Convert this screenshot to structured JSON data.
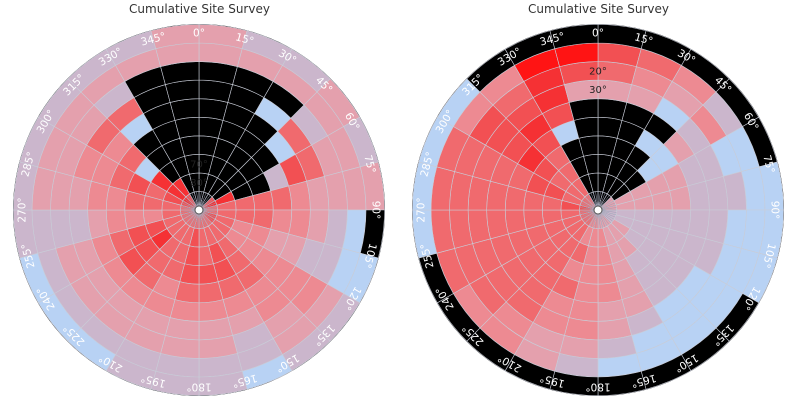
{
  "chart_data": [
    {
      "type": "polar-heatmap",
      "title": "Cumulative Site Survey",
      "azimuth_step_deg": 15,
      "elevation_rings_deg": [
        90,
        80,
        70,
        60,
        50,
        40,
        30,
        20,
        10,
        0
      ],
      "azimuth_labels": [
        "0°",
        "15°",
        "30°",
        "45°",
        "60°",
        "75°",
        "90°",
        "105°",
        "120°",
        "135°",
        "150°",
        "165°",
        "180°",
        "195°",
        "210°",
        "225°",
        "240°",
        "255°",
        "270°",
        "285°",
        "300°",
        "315°",
        "330°",
        "345°"
      ],
      "elevation_labels": [
        {
          "elevation": 70,
          "text": "70°"
        },
        {
          "elevation": 80,
          "text": "80°"
        }
      ],
      "colors": {
        "0": "#000000",
        "1": "#b8d2f4",
        "2": "#cbb6cc",
        "3": "#e4a0ad",
        "4": "#ed8a92",
        "5": "#f06a6e",
        "6": "#f25053",
        "7": "#f53134",
        "8": "#ff1414"
      },
      "grid": {
        "0": "0000000033",
        "15": "0000000032",
        "30": "0000001032",
        "45": "6000015233",
        "60": "7700265332",
        "75": "5555543333",
        "90": "5555443210",
        "105": "6544332211",
        "120": "6544444432",
        "135": "5555544332",
        "150": "5566543221",
        "165": "5556543322",
        "180": "5666543322",
        "195": "5555443322",
        "210": "5555543321",
        "225": "5576643321",
        "240": "5566543321",
        "255": "5544432222",
        "270": "5555443332",
        "285": "6656544332",
        "300": "7771545332",
        "315": "6700015232",
        "330": "0000000032",
        "345": "0000000033"
      }
    },
    {
      "type": "polar-heatmap",
      "title": "Cumulative Site Survey",
      "azimuth_step_deg": 15,
      "elevation_rings_deg": [
        90,
        80,
        70,
        60,
        50,
        40,
        30,
        20,
        10,
        0
      ],
      "azimuth_labels": [
        "0°",
        "15°",
        "30°",
        "45°",
        "60°",
        "75°",
        "90°",
        "105°",
        "120°",
        "135°",
        "150°",
        "165°",
        "180°",
        "195°",
        "210°",
        "225°",
        "240°",
        "255°",
        "270°",
        "285°",
        "300°",
        "315°",
        "330°",
        "345°"
      ],
      "elevation_labels": [
        {
          "elevation": 20,
          "text": "20°"
        },
        {
          "elevation": 30,
          "text": "30°"
        }
      ],
      "colors": {
        "0": "#000000",
        "1": "#b8d2f4",
        "2": "#cbb6cc",
        "3": "#e4a0ad",
        "4": "#ed8a92",
        "5": "#f06a6e",
        "6": "#f25053",
        "7": "#f53134",
        "8": "#ff1414"
      },
      "grid": {
        "0": "0000003560",
        "15": "0000003450",
        "30": "0000101340",
        "45": "3001132420",
        "60": "3333322110",
        "75": "3333322211",
        "90": "2222222111",
        "105": "2222222111",
        "120": "2322221110",
        "135": "3332221110",
        "150": "3333332110",
        "165": "3444433210",
        "180": "4444444320",
        "195": "4454544330",
        "210": "5555555440",
        "225": "5555555540",
        "240": "5555555550",
        "255": "5555555551",
        "270": "6655555551",
        "285": "5566555551",
        "300": "5556766641",
        "315": "5555676540",
        "330": "0000167780",
        "345": "0000003680"
      }
    }
  ]
}
